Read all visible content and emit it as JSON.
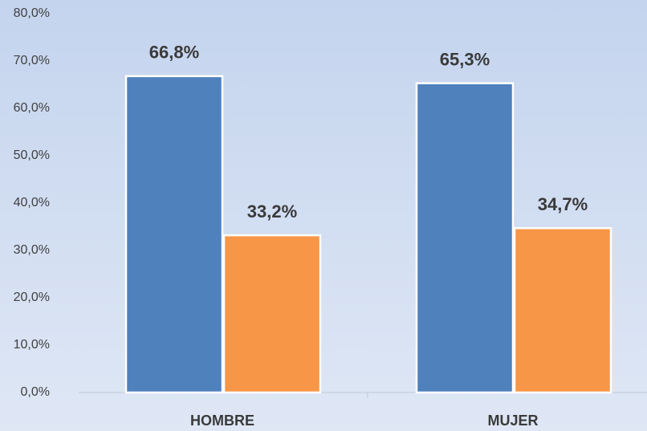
{
  "chart_data": {
    "type": "bar",
    "categories": [
      "HOMBRE",
      "MUJER"
    ],
    "series": [
      {
        "color": "#4f81bd",
        "values": [
          66.8,
          65.3
        ],
        "value_labels": [
          "66,8%",
          "65,3%"
        ]
      },
      {
        "color": "#f79646",
        "values": [
          33.2,
          34.7
        ],
        "value_labels": [
          "33,2%",
          "34,7%"
        ]
      }
    ],
    "ylim": [
      0,
      80
    ],
    "yticks": [
      {
        "value": 0,
        "label": "0,0%"
      },
      {
        "value": 10,
        "label": "10,0%"
      },
      {
        "value": 20,
        "label": "20,0%"
      },
      {
        "value": 30,
        "label": "30,0%"
      },
      {
        "value": 40,
        "label": "40,0%"
      },
      {
        "value": 50,
        "label": "50,0%"
      },
      {
        "value": 60,
        "label": "60,0%"
      },
      {
        "value": 70,
        "label": "70,0%"
      },
      {
        "value": 80,
        "label": "80,0%"
      }
    ],
    "grid": false
  }
}
